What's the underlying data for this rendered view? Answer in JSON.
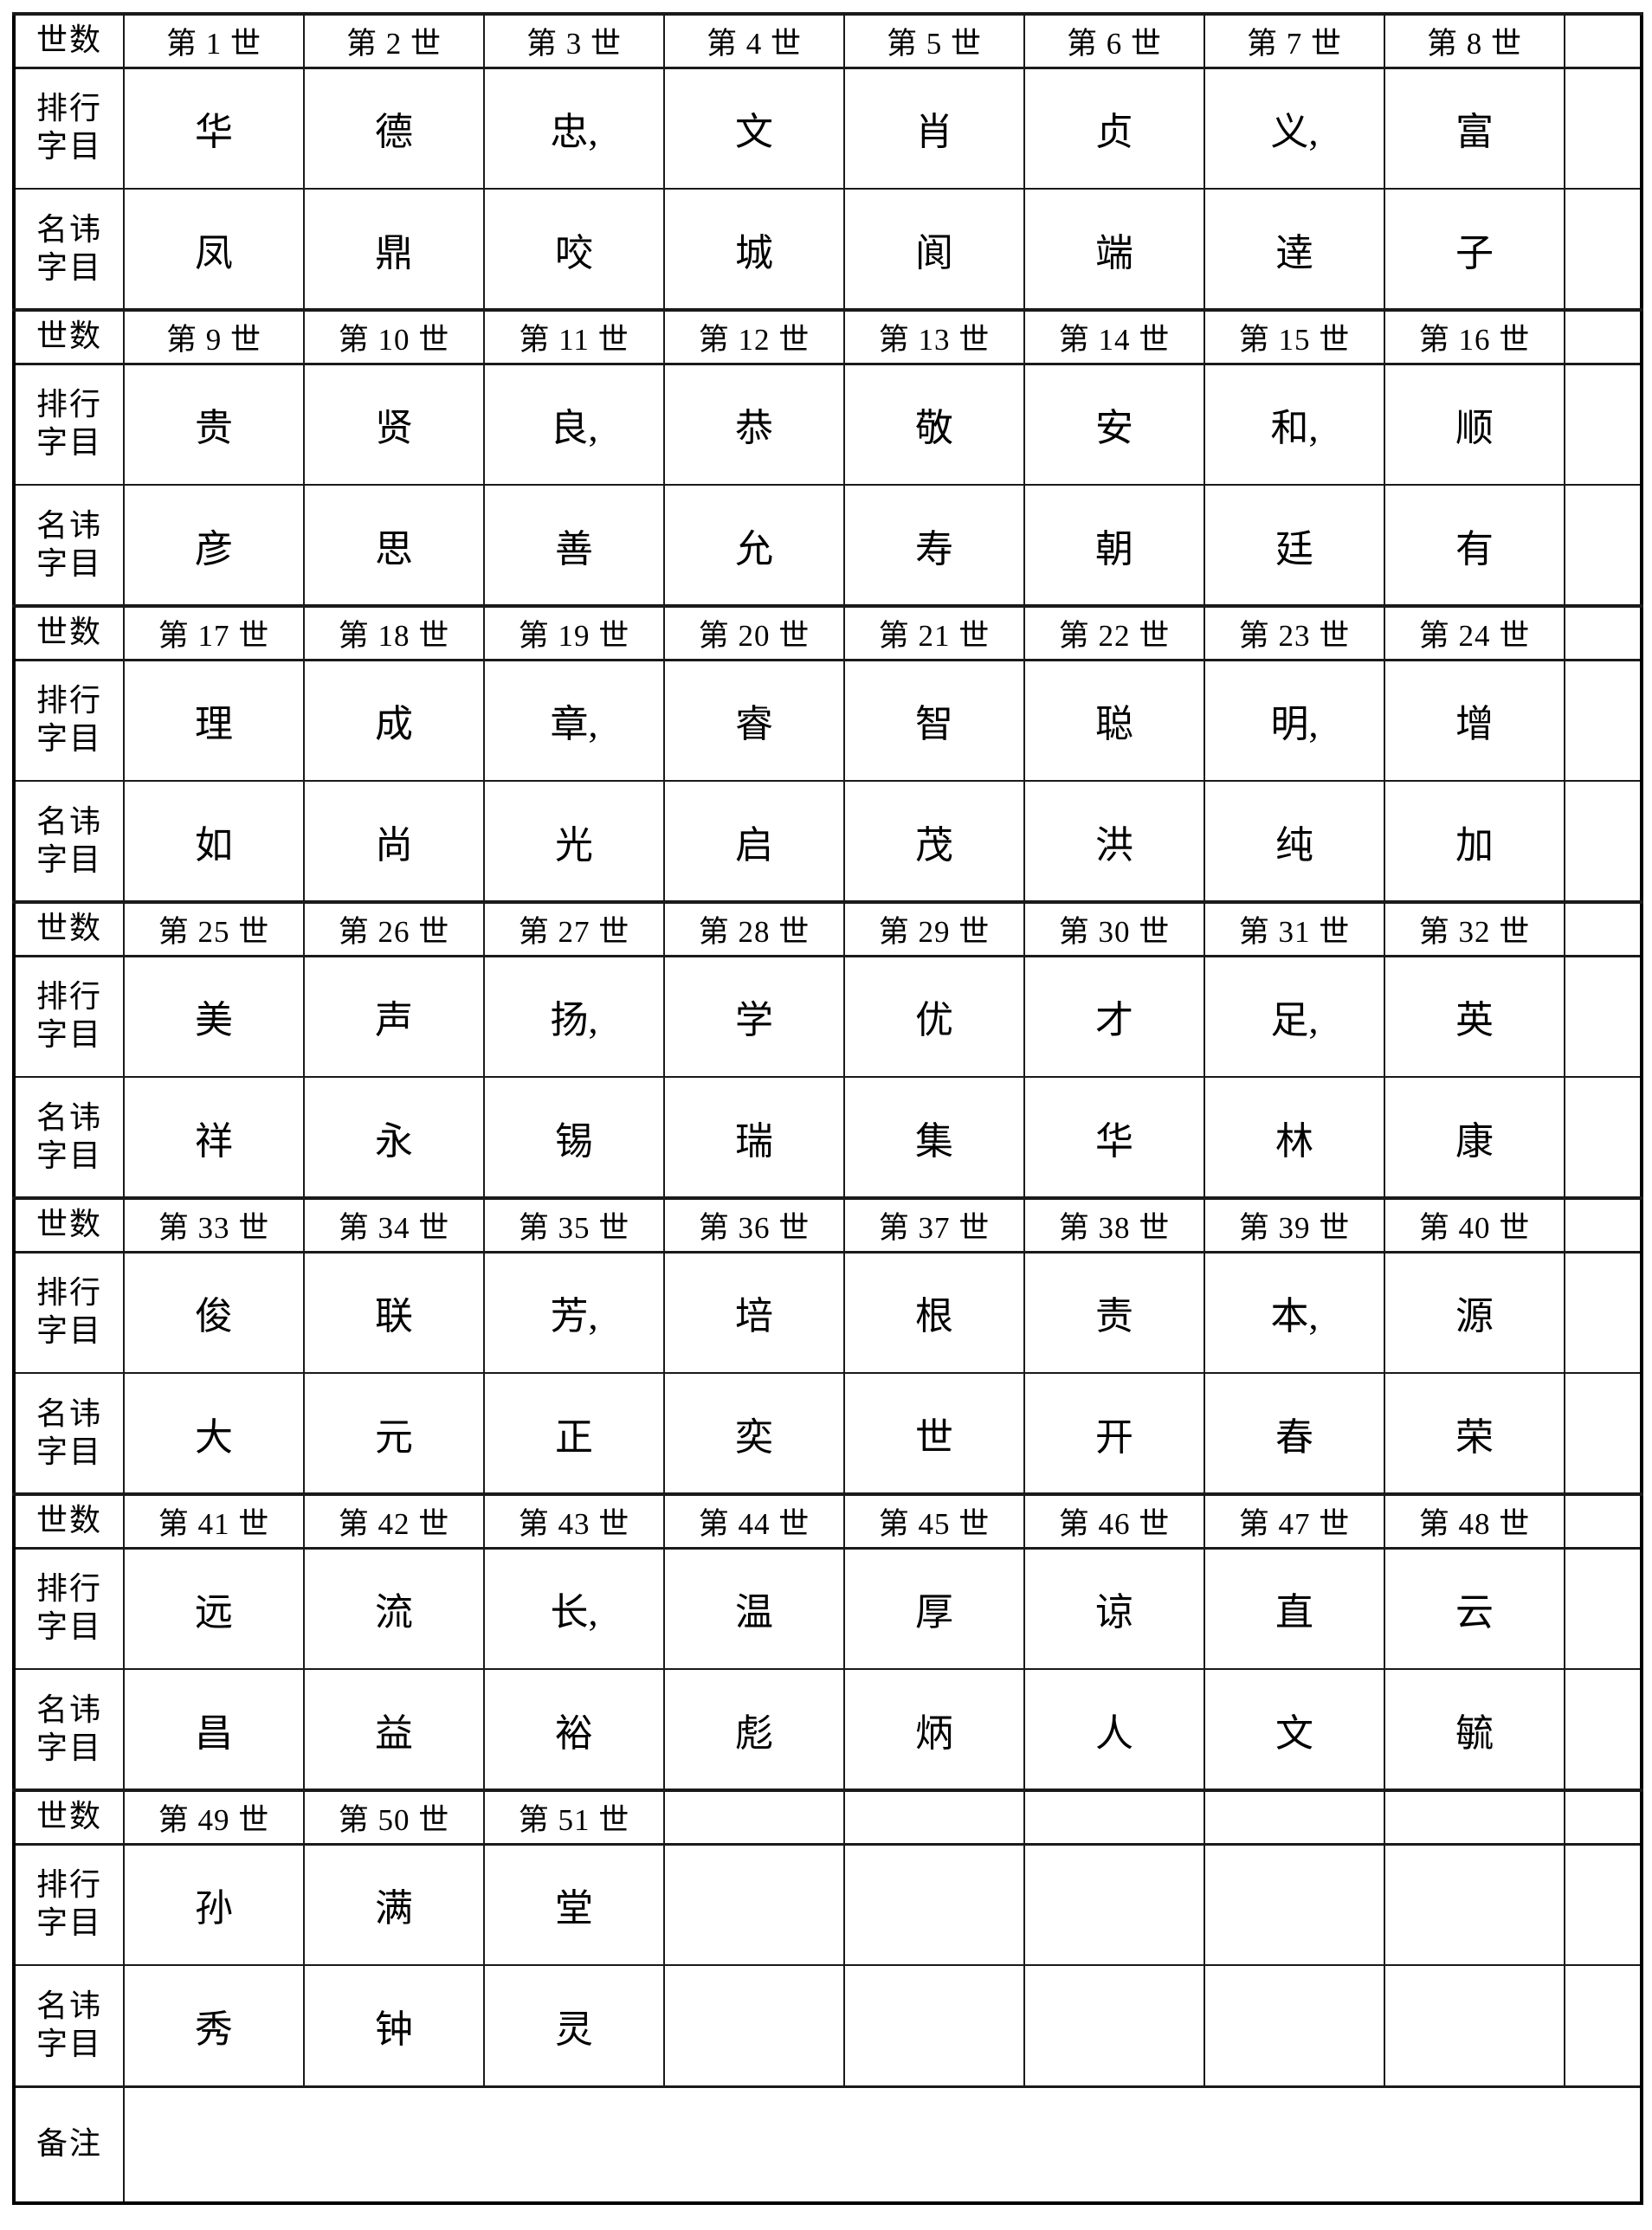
{
  "page": {
    "background": "#ffffff",
    "line_color": "#1a1a1a",
    "text_color": "#000000"
  },
  "labels": {
    "generation_row": "世数",
    "ranking_row": "排行字目",
    "name_row": "名讳字目",
    "remarks_row": "备注"
  },
  "remarks": {
    "content": ""
  },
  "sections": [
    {
      "generations": [
        "第 1 世",
        "第 2 世",
        "第 3 世",
        "第 4 世",
        "第 5 世",
        "第 6 世",
        "第 7 世",
        "第 8 世"
      ],
      "ranking_chars": [
        "华",
        "德",
        "忠,",
        "文",
        "肖",
        "贞",
        "义,",
        "富"
      ],
      "name_chars": [
        "凤",
        "鼎",
        "咬",
        "城",
        "阆",
        "端",
        "逹",
        "子"
      ]
    },
    {
      "generations": [
        "第 9 世",
        "第 10 世",
        "第 11 世",
        "第 12 世",
        "第 13 世",
        "第 14 世",
        "第 15 世",
        "第 16 世"
      ],
      "ranking_chars": [
        "贵",
        "贤",
        "良,",
        "恭",
        "敬",
        "安",
        "和,",
        "顺"
      ],
      "name_chars": [
        "彦",
        "思",
        "善",
        "允",
        "寿",
        "朝",
        "廷",
        "有"
      ]
    },
    {
      "generations": [
        "第 17 世",
        "第 18 世",
        "第 19 世",
        "第 20 世",
        "第 21 世",
        "第 22 世",
        "第 23 世",
        "第 24 世"
      ],
      "ranking_chars": [
        "理",
        "成",
        "章,",
        "睿",
        "智",
        "聪",
        "明,",
        "增"
      ],
      "name_chars": [
        "如",
        "尚",
        "光",
        "启",
        "茂",
        "洪",
        "纯",
        "加"
      ]
    },
    {
      "generations": [
        "第 25 世",
        "第 26 世",
        "第 27 世",
        "第 28 世",
        "第 29 世",
        "第 30 世",
        "第 31 世",
        "第 32 世"
      ],
      "ranking_chars": [
        "美",
        "声",
        "扬,",
        "学",
        "优",
        "才",
        "足,",
        "英"
      ],
      "name_chars": [
        "祥",
        "永",
        "锡",
        "瑞",
        "集",
        "华",
        "林",
        "康"
      ]
    },
    {
      "generations": [
        "第 33 世",
        "第 34 世",
        "第 35 世",
        "第 36 世",
        "第 37 世",
        "第 38 世",
        "第 39 世",
        "第 40 世"
      ],
      "ranking_chars": [
        "俊",
        "联",
        "芳,",
        "培",
        "根",
        "责",
        "本,",
        "源"
      ],
      "name_chars": [
        "大",
        "元",
        "正",
        "奕",
        "世",
        "开",
        "春",
        "荣"
      ]
    },
    {
      "generations": [
        "第 41 世",
        "第 42 世",
        "第 43 世",
        "第 44 世",
        "第 45 世",
        "第 46 世",
        "第 47 世",
        "第 48 世"
      ],
      "ranking_chars": [
        "远",
        "流",
        "长,",
        "温",
        "厚",
        "谅",
        "直",
        "云"
      ],
      "name_chars": [
        "昌",
        "益",
        "裕",
        "彪",
        "炳",
        "人",
        "文",
        "毓"
      ]
    },
    {
      "generations": [
        "第 49 世",
        "第 50 世",
        "第 51 世",
        "",
        "",
        "",
        "",
        ""
      ],
      "ranking_chars": [
        "孙",
        "满",
        "堂",
        "",
        "",
        "",
        "",
        ""
      ],
      "name_chars": [
        "秀",
        "钟",
        "灵",
        "",
        "",
        "",
        "",
        ""
      ]
    }
  ]
}
